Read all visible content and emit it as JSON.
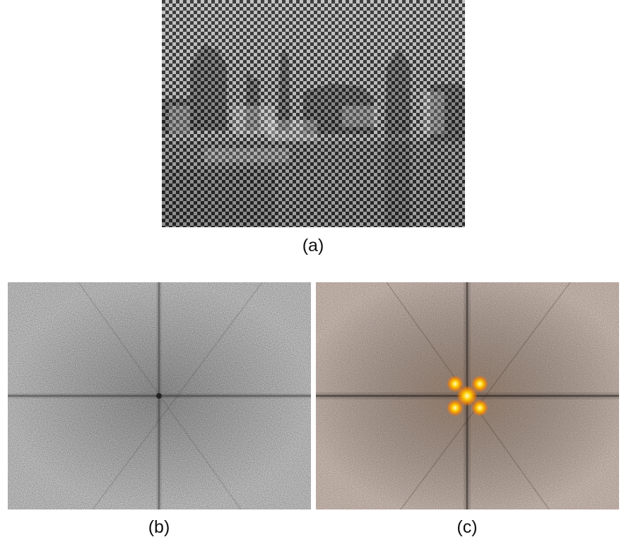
{
  "figure": {
    "panels": [
      {
        "id": "a",
        "caption": "(a)",
        "content": "halftone-modulated-photo"
      },
      {
        "id": "b",
        "caption": "(b)",
        "content": "fourier-spectrum-gray"
      },
      {
        "id": "c",
        "caption": "(c)",
        "content": "fourier-spectrum-with-highlighted-peaks"
      }
    ],
    "colors": {
      "checker_dark": "#2f2f2f",
      "checker_light": "#bdbdbd",
      "spectrum_bg": "#d2d2d2",
      "spectrum_line": "#2a2a2a",
      "spectrum_c_bg": "#d6c8c0",
      "peak_core": "#ffee88",
      "peak_glow": "#ff8a00"
    }
  }
}
